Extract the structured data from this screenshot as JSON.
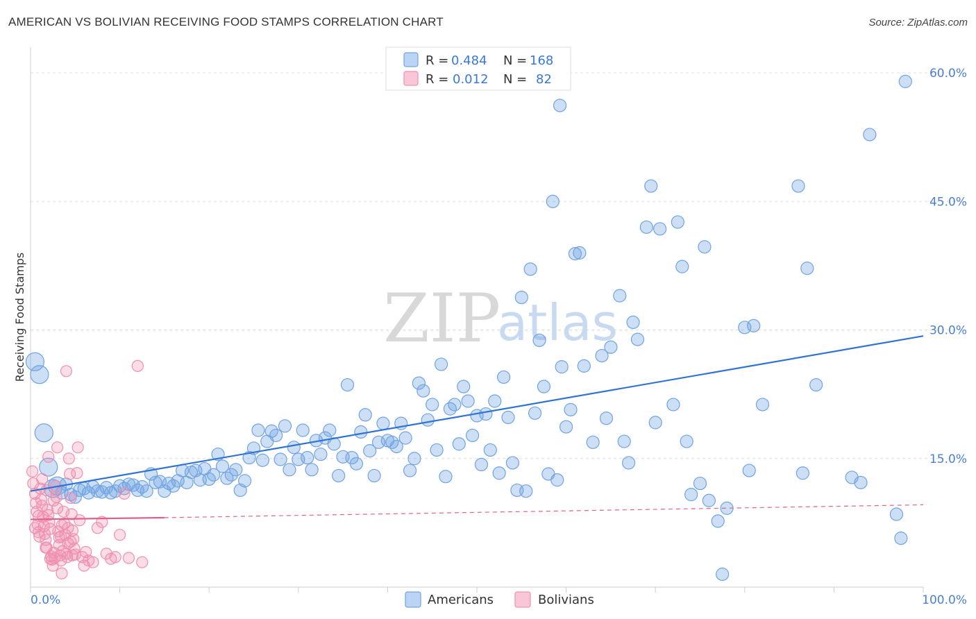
{
  "header": {
    "title": "AMERICAN VS BOLIVIAN RECEIVING FOOD STAMPS CORRELATION CHART",
    "source": "Source: ZipAtlas.com"
  },
  "watermark": {
    "zip": "ZIP",
    "atlas": "atlas"
  },
  "chart_data": {
    "type": "scatter",
    "title": "AMERICAN VS BOLIVIAN RECEIVING FOOD STAMPS CORRELATION CHART",
    "xlabel": "",
    "ylabel": "Receiving Food Stamps",
    "xlim": [
      0,
      100
    ],
    "ylim": [
      0,
      63
    ],
    "x_tick_labels": [
      {
        "value": 0,
        "label": "0.0%"
      },
      {
        "value": 100,
        "label": "100.0%"
      }
    ],
    "y_tick_labels": [
      {
        "value": 15,
        "label": "15.0%"
      },
      {
        "value": 30,
        "label": "30.0%"
      },
      {
        "value": 45,
        "label": "45.0%"
      },
      {
        "value": 60,
        "label": "60.0%"
      }
    ],
    "legend": [
      {
        "name": "Americans",
        "color": "#6fa3e3",
        "r_label": "R =",
        "r": "0.484",
        "n_label": "N =",
        "n": "168"
      },
      {
        "name": "Bolivians",
        "color": "#f08fb0",
        "r_label": "R =",
        "r": "0.012",
        "n_label": "N =",
        "n": "82"
      }
    ],
    "series": [
      {
        "name": "Americans",
        "color": "#6fa3e3",
        "line_color": "#2f73d3",
        "trend": {
          "x0": 0,
          "y0": 11.2,
          "x1": 100,
          "y1": 29.3
        },
        "points": [
          [
            0.5,
            26.3
          ],
          [
            1,
            24.8
          ],
          [
            1.5,
            18
          ],
          [
            2,
            14
          ],
          [
            2.5,
            11.5
          ],
          [
            3,
            11.8
          ],
          [
            3.5,
            11
          ],
          [
            4,
            12
          ],
          [
            4.5,
            10.8
          ],
          [
            5,
            10.5
          ],
          [
            5.5,
            11.3
          ],
          [
            6,
            11.5
          ],
          [
            6.5,
            11
          ],
          [
            7,
            11.7
          ],
          [
            7.5,
            11.2
          ],
          [
            8,
            11.1
          ],
          [
            8.5,
            11.6
          ],
          [
            9,
            11
          ],
          [
            9.5,
            11.2
          ],
          [
            10,
            11.8
          ],
          [
            10.5,
            11.5
          ],
          [
            11,
            12
          ],
          [
            11.5,
            11.9
          ],
          [
            12,
            11.3
          ],
          [
            12.5,
            11.7
          ],
          [
            13,
            11.2
          ],
          [
            13.5,
            13.2
          ],
          [
            14,
            12.2
          ],
          [
            14.5,
            12.3
          ],
          [
            15,
            11.2
          ],
          [
            15.5,
            12.1
          ],
          [
            16,
            11.8
          ],
          [
            16.5,
            12.4
          ],
          [
            17,
            13.6
          ],
          [
            17.5,
            12.2
          ],
          [
            18,
            13.4
          ],
          [
            18.5,
            13.6
          ],
          [
            19,
            12.5
          ],
          [
            19.5,
            13.8
          ],
          [
            20,
            12.6
          ],
          [
            20.5,
            13.1
          ],
          [
            21,
            15.5
          ],
          [
            21.5,
            14.1
          ],
          [
            22,
            12.7
          ],
          [
            22.5,
            13.1
          ],
          [
            23,
            13.7
          ],
          [
            23.5,
            11.3
          ],
          [
            24,
            12.4
          ],
          [
            24.5,
            15.1
          ],
          [
            25,
            16.2
          ],
          [
            25.5,
            18.3
          ],
          [
            26,
            14.8
          ],
          [
            26.5,
            17
          ],
          [
            27,
            18.2
          ],
          [
            27.5,
            17.7
          ],
          [
            28,
            14.9
          ],
          [
            28.5,
            18.8
          ],
          [
            29,
            13.7
          ],
          [
            29.5,
            16.3
          ],
          [
            30,
            14.9
          ],
          [
            30.5,
            18.3
          ],
          [
            31,
            15.1
          ],
          [
            31.5,
            13.7
          ],
          [
            32,
            17.1
          ],
          [
            32.5,
            15.5
          ],
          [
            33,
            17.4
          ],
          [
            33.5,
            18.3
          ],
          [
            34,
            16.7
          ],
          [
            34.5,
            13
          ],
          [
            35,
            15.2
          ],
          [
            35.5,
            23.6
          ],
          [
            36,
            15.1
          ],
          [
            36.5,
            14.4
          ],
          [
            37,
            18.1
          ],
          [
            37.5,
            20.1
          ],
          [
            38,
            15.9
          ],
          [
            38.5,
            13
          ],
          [
            39,
            16.9
          ],
          [
            39.5,
            19.1
          ],
          [
            40,
            17.1
          ],
          [
            40.5,
            16.9
          ],
          [
            41,
            16.4
          ],
          [
            41.5,
            19.1
          ],
          [
            42,
            17.4
          ],
          [
            42.5,
            13.6
          ],
          [
            43,
            15
          ],
          [
            43.5,
            23.8
          ],
          [
            44,
            22.9
          ],
          [
            44.5,
            19.5
          ],
          [
            45,
            21.3
          ],
          [
            45.5,
            16
          ],
          [
            46,
            26
          ],
          [
            46.5,
            12.9
          ],
          [
            47,
            20.8
          ],
          [
            47.5,
            21.3
          ],
          [
            48,
            16.7
          ],
          [
            48.5,
            23.4
          ],
          [
            49,
            21.7
          ],
          [
            49.5,
            17.7
          ],
          [
            50,
            20
          ],
          [
            50.5,
            14.3
          ],
          [
            51,
            20.2
          ],
          [
            51.5,
            16
          ],
          [
            52,
            21.7
          ],
          [
            52.5,
            13.3
          ],
          [
            53,
            24.5
          ],
          [
            53.5,
            19.8
          ],
          [
            54,
            14.5
          ],
          [
            54.5,
            11.3
          ],
          [
            55,
            33.8
          ],
          [
            55.5,
            11.2
          ],
          [
            56,
            37.1
          ],
          [
            56.5,
            20.3
          ],
          [
            57,
            28.8
          ],
          [
            57.5,
            23.4
          ],
          [
            58,
            13.2
          ],
          [
            58.5,
            45
          ],
          [
            59,
            12.5
          ],
          [
            59.5,
            25.7
          ],
          [
            60,
            18.7
          ],
          [
            60.5,
            20.7
          ],
          [
            61,
            38.9
          ],
          [
            61.5,
            39
          ],
          [
            62,
            25.8
          ],
          [
            63,
            16.9
          ],
          [
            64,
            27
          ],
          [
            64.5,
            19.7
          ],
          [
            65,
            28
          ],
          [
            66,
            34
          ],
          [
            66.5,
            17
          ],
          [
            67,
            14.5
          ],
          [
            67.5,
            30.9
          ],
          [
            68,
            28.9
          ],
          [
            69,
            42
          ],
          [
            69.5,
            46.8
          ],
          [
            70,
            19.2
          ],
          [
            70.5,
            41.8
          ],
          [
            72,
            21.3
          ],
          [
            72.5,
            42.6
          ],
          [
            73,
            37.4
          ],
          [
            73.5,
            17
          ],
          [
            74,
            10.8
          ],
          [
            75,
            12.1
          ],
          [
            75.5,
            39.7
          ],
          [
            76,
            10.1
          ],
          [
            77,
            7.7
          ],
          [
            77.5,
            1.5
          ],
          [
            78,
            9.2
          ],
          [
            80,
            30.3
          ],
          [
            80.5,
            13.6
          ],
          [
            81,
            30.5
          ],
          [
            82,
            21.3
          ],
          [
            86,
            46.8
          ],
          [
            86.5,
            13.3
          ],
          [
            87,
            37.2
          ],
          [
            88,
            23.6
          ],
          [
            92,
            12.8
          ],
          [
            93,
            12.2
          ],
          [
            94,
            52.8
          ],
          [
            97,
            8.5
          ],
          [
            97.5,
            5.7
          ],
          [
            98,
            59
          ],
          [
            59.3,
            56.2
          ]
        ]
      },
      {
        "name": "Bolivians",
        "color": "#f08fb0",
        "line_color": "#e0608a",
        "trend": {
          "x0": 0,
          "y0": 7.9,
          "x1": 15,
          "y1": 8.1,
          "x_dash_end": 100,
          "y_dash_end": 9.6
        },
        "points": [
          [
            0.2,
            13.5
          ],
          [
            0.3,
            12.1
          ],
          [
            0.5,
            10.9
          ],
          [
            0.6,
            9.8
          ],
          [
            0.7,
            8.8
          ],
          [
            0.8,
            7.3
          ],
          [
            0.9,
            6.4
          ],
          [
            1,
            5.9
          ],
          [
            1.1,
            11.5
          ],
          [
            1.2,
            10.2
          ],
          [
            1.3,
            9.5
          ],
          [
            1.4,
            8.2
          ],
          [
            1.5,
            7.1
          ],
          [
            1.6,
            6.2
          ],
          [
            1.7,
            5.5
          ],
          [
            1.8,
            11.3
          ],
          [
            1.9,
            9
          ],
          [
            2,
            8.4
          ],
          [
            2.1,
            7.6
          ],
          [
            2.2,
            6.8
          ],
          [
            2.3,
            3.6
          ],
          [
            2.4,
            3.2
          ],
          [
            2.5,
            2.5
          ],
          [
            2.6,
            4
          ],
          [
            2.7,
            3.4
          ],
          [
            2.8,
            11.8
          ],
          [
            2.9,
            10.5
          ],
          [
            3,
            9.2
          ],
          [
            3.1,
            6.5
          ],
          [
            3.2,
            5.8
          ],
          [
            3.3,
            3.7
          ],
          [
            3.4,
            3.1
          ],
          [
            3.5,
            1.6
          ],
          [
            3.6,
            4.2
          ],
          [
            3.7,
            8.8
          ],
          [
            3.8,
            7.4
          ],
          [
            3.9,
            6.1
          ],
          [
            4,
            3.9
          ],
          [
            4.1,
            3.5
          ],
          [
            4.2,
            5.1
          ],
          [
            4.3,
            15
          ],
          [
            4.4,
            13.2
          ],
          [
            4.5,
            10.4
          ],
          [
            4.6,
            8.5
          ],
          [
            4.7,
            6.6
          ],
          [
            4.8,
            5.6
          ],
          [
            4.9,
            4.5
          ],
          [
            5,
            3.8
          ],
          [
            5.2,
            13.3
          ],
          [
            5.5,
            7.8
          ],
          [
            5.8,
            3.5
          ],
          [
            6,
            2.5
          ],
          [
            6.5,
            3.1
          ],
          [
            7,
            2.9
          ],
          [
            7.5,
            6.9
          ],
          [
            8,
            7.6
          ],
          [
            8.5,
            3.9
          ],
          [
            9,
            3.3
          ],
          [
            9.5,
            3.5
          ],
          [
            10,
            6.1
          ],
          [
            10.5,
            10.9
          ],
          [
            11,
            3.4
          ],
          [
            12,
            25.8
          ],
          [
            12.5,
            2.9
          ],
          [
            4,
            25.2
          ],
          [
            2,
            15.2
          ],
          [
            3.5,
            7.2
          ],
          [
            4.2,
            6.9
          ],
          [
            1.3,
            12.6
          ],
          [
            2.6,
            10.1
          ],
          [
            0.9,
            8.3
          ],
          [
            1.7,
            4.6
          ],
          [
            3.2,
            4.9
          ],
          [
            4.7,
            3.7
          ],
          [
            5.3,
            16.3
          ],
          [
            3,
            16.3
          ],
          [
            6.2,
            4.1
          ],
          [
            2.2,
            3.3
          ],
          [
            0.5,
            6.9
          ],
          [
            1.8,
            4.6
          ],
          [
            3.4,
            5.9
          ],
          [
            4.5,
            5.3
          ]
        ]
      }
    ]
  },
  "bottom_legend": {
    "americans": "Americans",
    "bolivians": "Bolivians"
  }
}
